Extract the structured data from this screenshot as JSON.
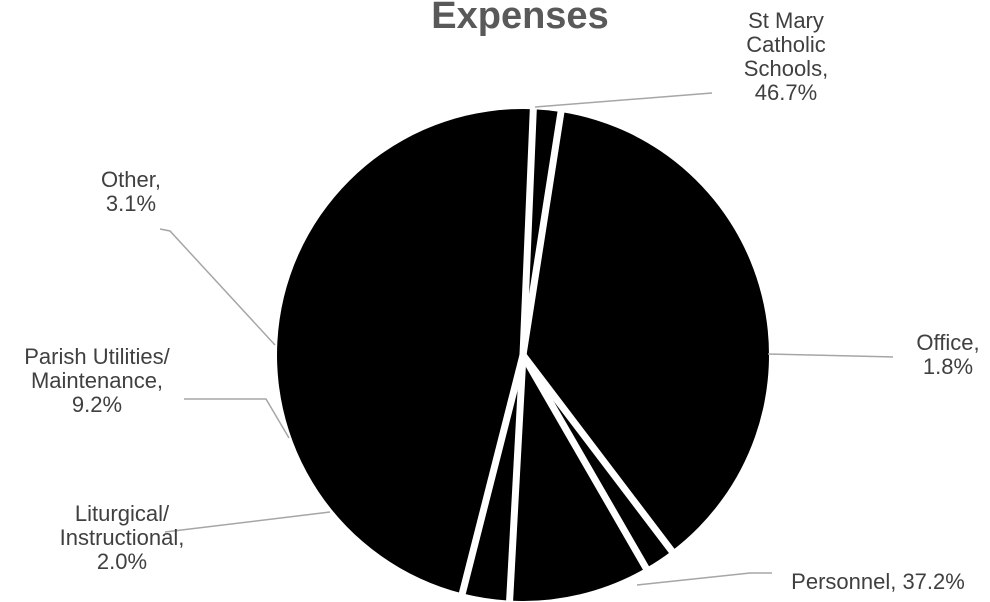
{
  "chart_data": {
    "type": "pie",
    "title": "Expenses",
    "slices": [
      {
        "name": "Office",
        "value": 1.8,
        "label_lines": [
          "Office,",
          "1.8%"
        ]
      },
      {
        "name": "Personnel",
        "value": 37.2,
        "label_lines": [
          "Personnel, 37.2%"
        ]
      },
      {
        "name": "Liturgical/ Instructional",
        "value": 2.0,
        "label_lines": [
          "Liturgical/",
          "Instructional,",
          "2.0%"
        ]
      },
      {
        "name": "Parish Utilities/ Maintenance",
        "value": 9.2,
        "label_lines": [
          "Parish Utilities/",
          "Maintenance,",
          "9.2%"
        ]
      },
      {
        "name": "Other",
        "value": 3.1,
        "label_lines": [
          "Other,",
          "3.1%"
        ]
      },
      {
        "name": "St Mary Catholic Schools",
        "value": 46.7,
        "label_lines": [
          "St Mary",
          "Catholic",
          "Schools,",
          "46.7%"
        ]
      }
    ],
    "slice_color": "#000000",
    "separator_color": "#ffffff",
    "label_color": "#404040",
    "leader_line_color": "#a6a6a6",
    "legend": "none"
  }
}
